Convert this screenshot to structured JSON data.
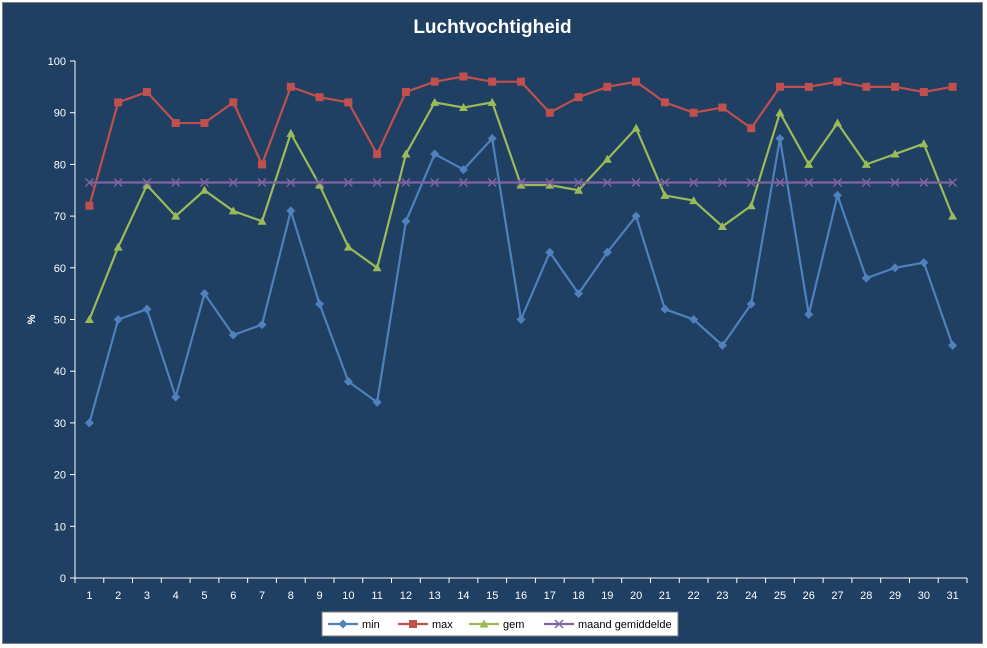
{
  "chart_data": {
    "type": "line",
    "title": "Luchtvochtigheid",
    "xlabel": "",
    "ylabel": "%",
    "ylim": [
      0,
      100
    ],
    "yticks": [
      0,
      10,
      20,
      30,
      40,
      50,
      60,
      70,
      80,
      90,
      100
    ],
    "categories": [
      "1",
      "2",
      "3",
      "4",
      "5",
      "6",
      "7",
      "8",
      "9",
      "10",
      "11",
      "12",
      "13",
      "14",
      "15",
      "16",
      "17",
      "18",
      "19",
      "20",
      "21",
      "22",
      "23",
      "24",
      "25",
      "26",
      "27",
      "28",
      "29",
      "30",
      "31"
    ],
    "grid": false,
    "legend_position": "bottom",
    "series": [
      {
        "name": "min",
        "color": "#4f81bd",
        "marker": "diamond",
        "values": [
          30,
          50,
          52,
          35,
          55,
          47,
          49,
          71,
          53,
          38,
          34,
          69,
          82,
          79,
          85,
          50,
          63,
          55,
          63,
          70,
          52,
          50,
          45,
          53,
          85,
          51,
          74,
          58,
          60,
          61,
          45
        ]
      },
      {
        "name": "max",
        "color": "#c0504d",
        "marker": "square",
        "values": [
          72,
          92,
          94,
          88,
          88,
          92,
          80,
          95,
          93,
          92,
          82,
          94,
          96,
          97,
          96,
          96,
          90,
          93,
          95,
          96,
          92,
          90,
          91,
          87,
          95,
          95,
          96,
          95,
          95,
          94,
          95
        ]
      },
      {
        "name": "gem",
        "color": "#9bbb59",
        "marker": "triangle",
        "values": [
          50,
          64,
          76,
          70,
          75,
          71,
          69,
          86,
          76,
          64,
          60,
          82,
          92,
          91,
          92,
          76,
          76,
          75,
          81,
          87,
          74,
          73,
          68,
          72,
          90,
          80,
          88,
          80,
          82,
          84,
          70
        ]
      },
      {
        "name": "maand gemiddelde",
        "color": "#8064a2",
        "marker": "x",
        "values": [
          76.5,
          76.5,
          76.5,
          76.5,
          76.5,
          76.5,
          76.5,
          76.5,
          76.5,
          76.5,
          76.5,
          76.5,
          76.5,
          76.5,
          76.5,
          76.5,
          76.5,
          76.5,
          76.5,
          76.5,
          76.5,
          76.5,
          76.5,
          76.5,
          76.5,
          76.5,
          76.5,
          76.5,
          76.5,
          76.5,
          76.5
        ]
      }
    ]
  }
}
